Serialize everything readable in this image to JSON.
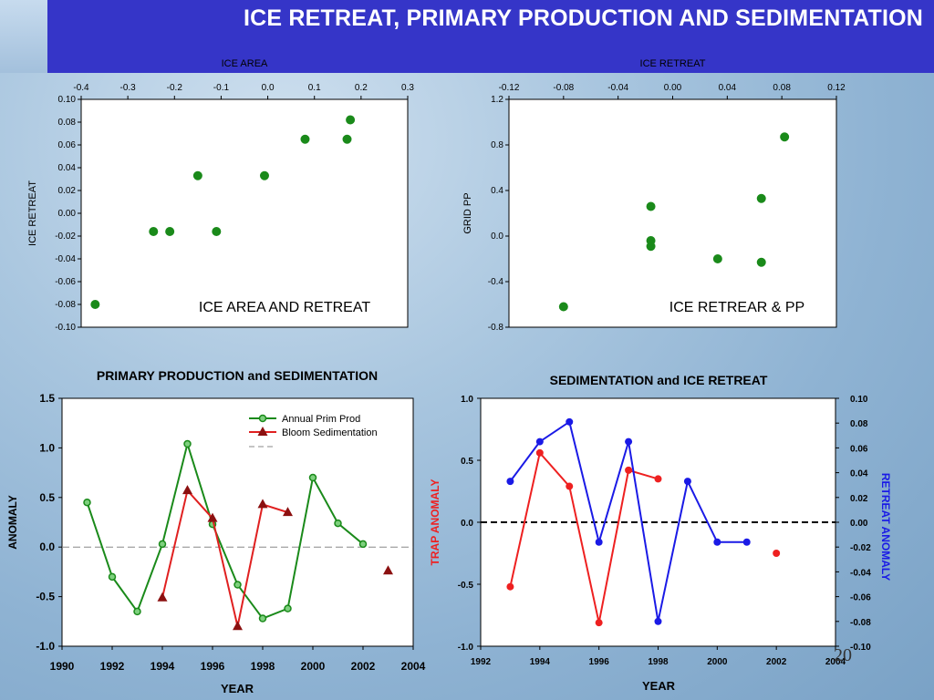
{
  "slide": {
    "title": "ICE RETREAT, PRIMARY PRODUCTION AND SEDIMENTATION",
    "page_number": "20"
  },
  "colors": {
    "title_bg": "#3535c8",
    "green": "#1a8a1a",
    "dark_red": "#8b1010",
    "red": "#ee2020",
    "blue": "#1a1ae6"
  },
  "chart_data": [
    {
      "type": "scatter",
      "top_label": "ICE AREA",
      "annotation": "ICE AREA AND RETREAT",
      "xlabel": "",
      "ylabel": "ICE RETREAT",
      "xlim": [
        -0.4,
        0.3
      ],
      "ylim": [
        -0.1,
        0.1
      ],
      "x_ticks": [
        "-0.4",
        "-0.3",
        "-0.2",
        "-0.1",
        "0.0",
        "0.1",
        "0.2",
        "0.3"
      ],
      "y_ticks": [
        "0.10",
        "0.08",
        "0.06",
        "0.04",
        "0.02",
        "0.00",
        "-0.02",
        "-0.04",
        "-0.06",
        "-0.08",
        "-0.10"
      ],
      "x_axis_position": "top",
      "points": [
        {
          "x": -0.37,
          "y": -0.08
        },
        {
          "x": -0.245,
          "y": -0.016
        },
        {
          "x": -0.21,
          "y": -0.016
        },
        {
          "x": -0.15,
          "y": 0.033
        },
        {
          "x": -0.11,
          "y": -0.016
        },
        {
          "x": -0.007,
          "y": 0.033
        },
        {
          "x": 0.08,
          "y": 0.065
        },
        {
          "x": 0.17,
          "y": 0.065
        },
        {
          "x": 0.177,
          "y": 0.082
        }
      ]
    },
    {
      "type": "scatter",
      "top_label": "ICE RETREAT",
      "annotation": "ICE RETREAR & PP",
      "xlabel": "",
      "ylabel": "GRID PP",
      "xlim": [
        -0.12,
        0.12
      ],
      "ylim": [
        -0.8,
        1.2
      ],
      "x_ticks": [
        "-0.12",
        "-0.08",
        "-0.04",
        "0.00",
        "0.04",
        "0.08",
        "0.12"
      ],
      "y_ticks": [
        "1.2",
        "0.8",
        "0.4",
        "0.0",
        "-0.4",
        "-0.8"
      ],
      "x_axis_position": "top",
      "points": [
        {
          "x": -0.08,
          "y": -0.62
        },
        {
          "x": -0.016,
          "y": 0.26
        },
        {
          "x": -0.016,
          "y": -0.04
        },
        {
          "x": -0.016,
          "y": -0.09
        },
        {
          "x": 0.033,
          "y": -0.2
        },
        {
          "x": 0.065,
          "y": 0.33
        },
        {
          "x": 0.065,
          "y": -0.23
        },
        {
          "x": 0.082,
          "y": 0.87
        }
      ]
    },
    {
      "type": "line",
      "title": "PRIMARY PRODUCTION and SEDIMENTATION",
      "xlabel": "YEAR",
      "ylabel": "ANOMALY",
      "xlim": [
        1990,
        2004
      ],
      "ylim": [
        -1.0,
        1.5
      ],
      "x_ticks": [
        "1990",
        "1992",
        "1994",
        "1996",
        "1998",
        "2000",
        "2002",
        "2004"
      ],
      "y_ticks": [
        "1.5",
        "1.0",
        "0.5",
        "0.0",
        "-0.5",
        "-1.0"
      ],
      "legend_position": "top-right",
      "series": [
        {
          "name": "Annual Prim Prod",
          "marker": "circle",
          "points": [
            [
              1991,
              0.45
            ],
            [
              1992,
              -0.3
            ],
            [
              1993,
              -0.65
            ],
            [
              1994,
              0.03
            ],
            [
              1995,
              1.04
            ],
            [
              1996,
              0.23
            ],
            [
              1997,
              -0.38
            ],
            [
              1998,
              -0.72
            ],
            [
              1999,
              -0.62
            ],
            [
              2000,
              0.7
            ],
            [
              2001,
              0.24
            ],
            [
              2002,
              0.03
            ]
          ]
        },
        {
          "name": "Bloom Sedimentation",
          "marker": "triangle",
          "points": [
            [
              1994,
              -0.51
            ],
            [
              1995,
              0.57
            ],
            [
              1996,
              0.29
            ],
            [
              1997,
              -0.8
            ],
            [
              1998,
              0.43
            ],
            [
              1999,
              0.35
            ],
            [
              2003,
              -0.24
            ]
          ],
          "segments": [
            [
              0,
              5
            ],
            [
              6,
              6
            ]
          ]
        }
      ],
      "reference_line": 0.0
    },
    {
      "type": "line",
      "title": "SEDIMENTATION and ICE RETREAT",
      "xlabel": "YEAR",
      "ylabel": "TRAP ANOMALY",
      "ylabel_right": "RETREAT ANOMALY",
      "xlim": [
        1992,
        2004
      ],
      "ylim": [
        -1.0,
        1.0
      ],
      "ylim_right": [
        -0.1,
        0.1
      ],
      "x_ticks": [
        "1992",
        "1994",
        "1996",
        "1998",
        "2000",
        "2002",
        "2004"
      ],
      "y_ticks": [
        "1.0",
        "0.5",
        "0.0",
        "-0.5",
        "-1.0"
      ],
      "y_ticks_right": [
        "0.10",
        "0.08",
        "0.06",
        "0.04",
        "0.02",
        "0.00",
        "-0.02",
        "-0.04",
        "-0.06",
        "-0.08",
        "-0.10"
      ],
      "series": [
        {
          "name": "",
          "axis": "left",
          "color": "red",
          "points": [
            [
              1993,
              -0.52
            ],
            [
              1994,
              0.56
            ],
            [
              1995,
              0.29
            ],
            [
              1996,
              -0.81
            ],
            [
              1997,
              0.42
            ],
            [
              1998,
              0.35
            ],
            [
              2002,
              -0.25
            ]
          ],
          "segments": [
            [
              0,
              5
            ],
            [
              6,
              6
            ]
          ]
        },
        {
          "name": "",
          "axis": "right",
          "color": "blue",
          "points": [
            [
              1993,
              0.033
            ],
            [
              1994,
              0.065
            ],
            [
              1995,
              0.081
            ],
            [
              1996,
              -0.016
            ],
            [
              1997,
              0.065
            ],
            [
              1998,
              -0.08
            ],
            [
              1999,
              0.033
            ],
            [
              2000,
              -0.016
            ],
            [
              2001,
              -0.016
            ]
          ]
        }
      ],
      "reference_line": 0.0
    }
  ]
}
